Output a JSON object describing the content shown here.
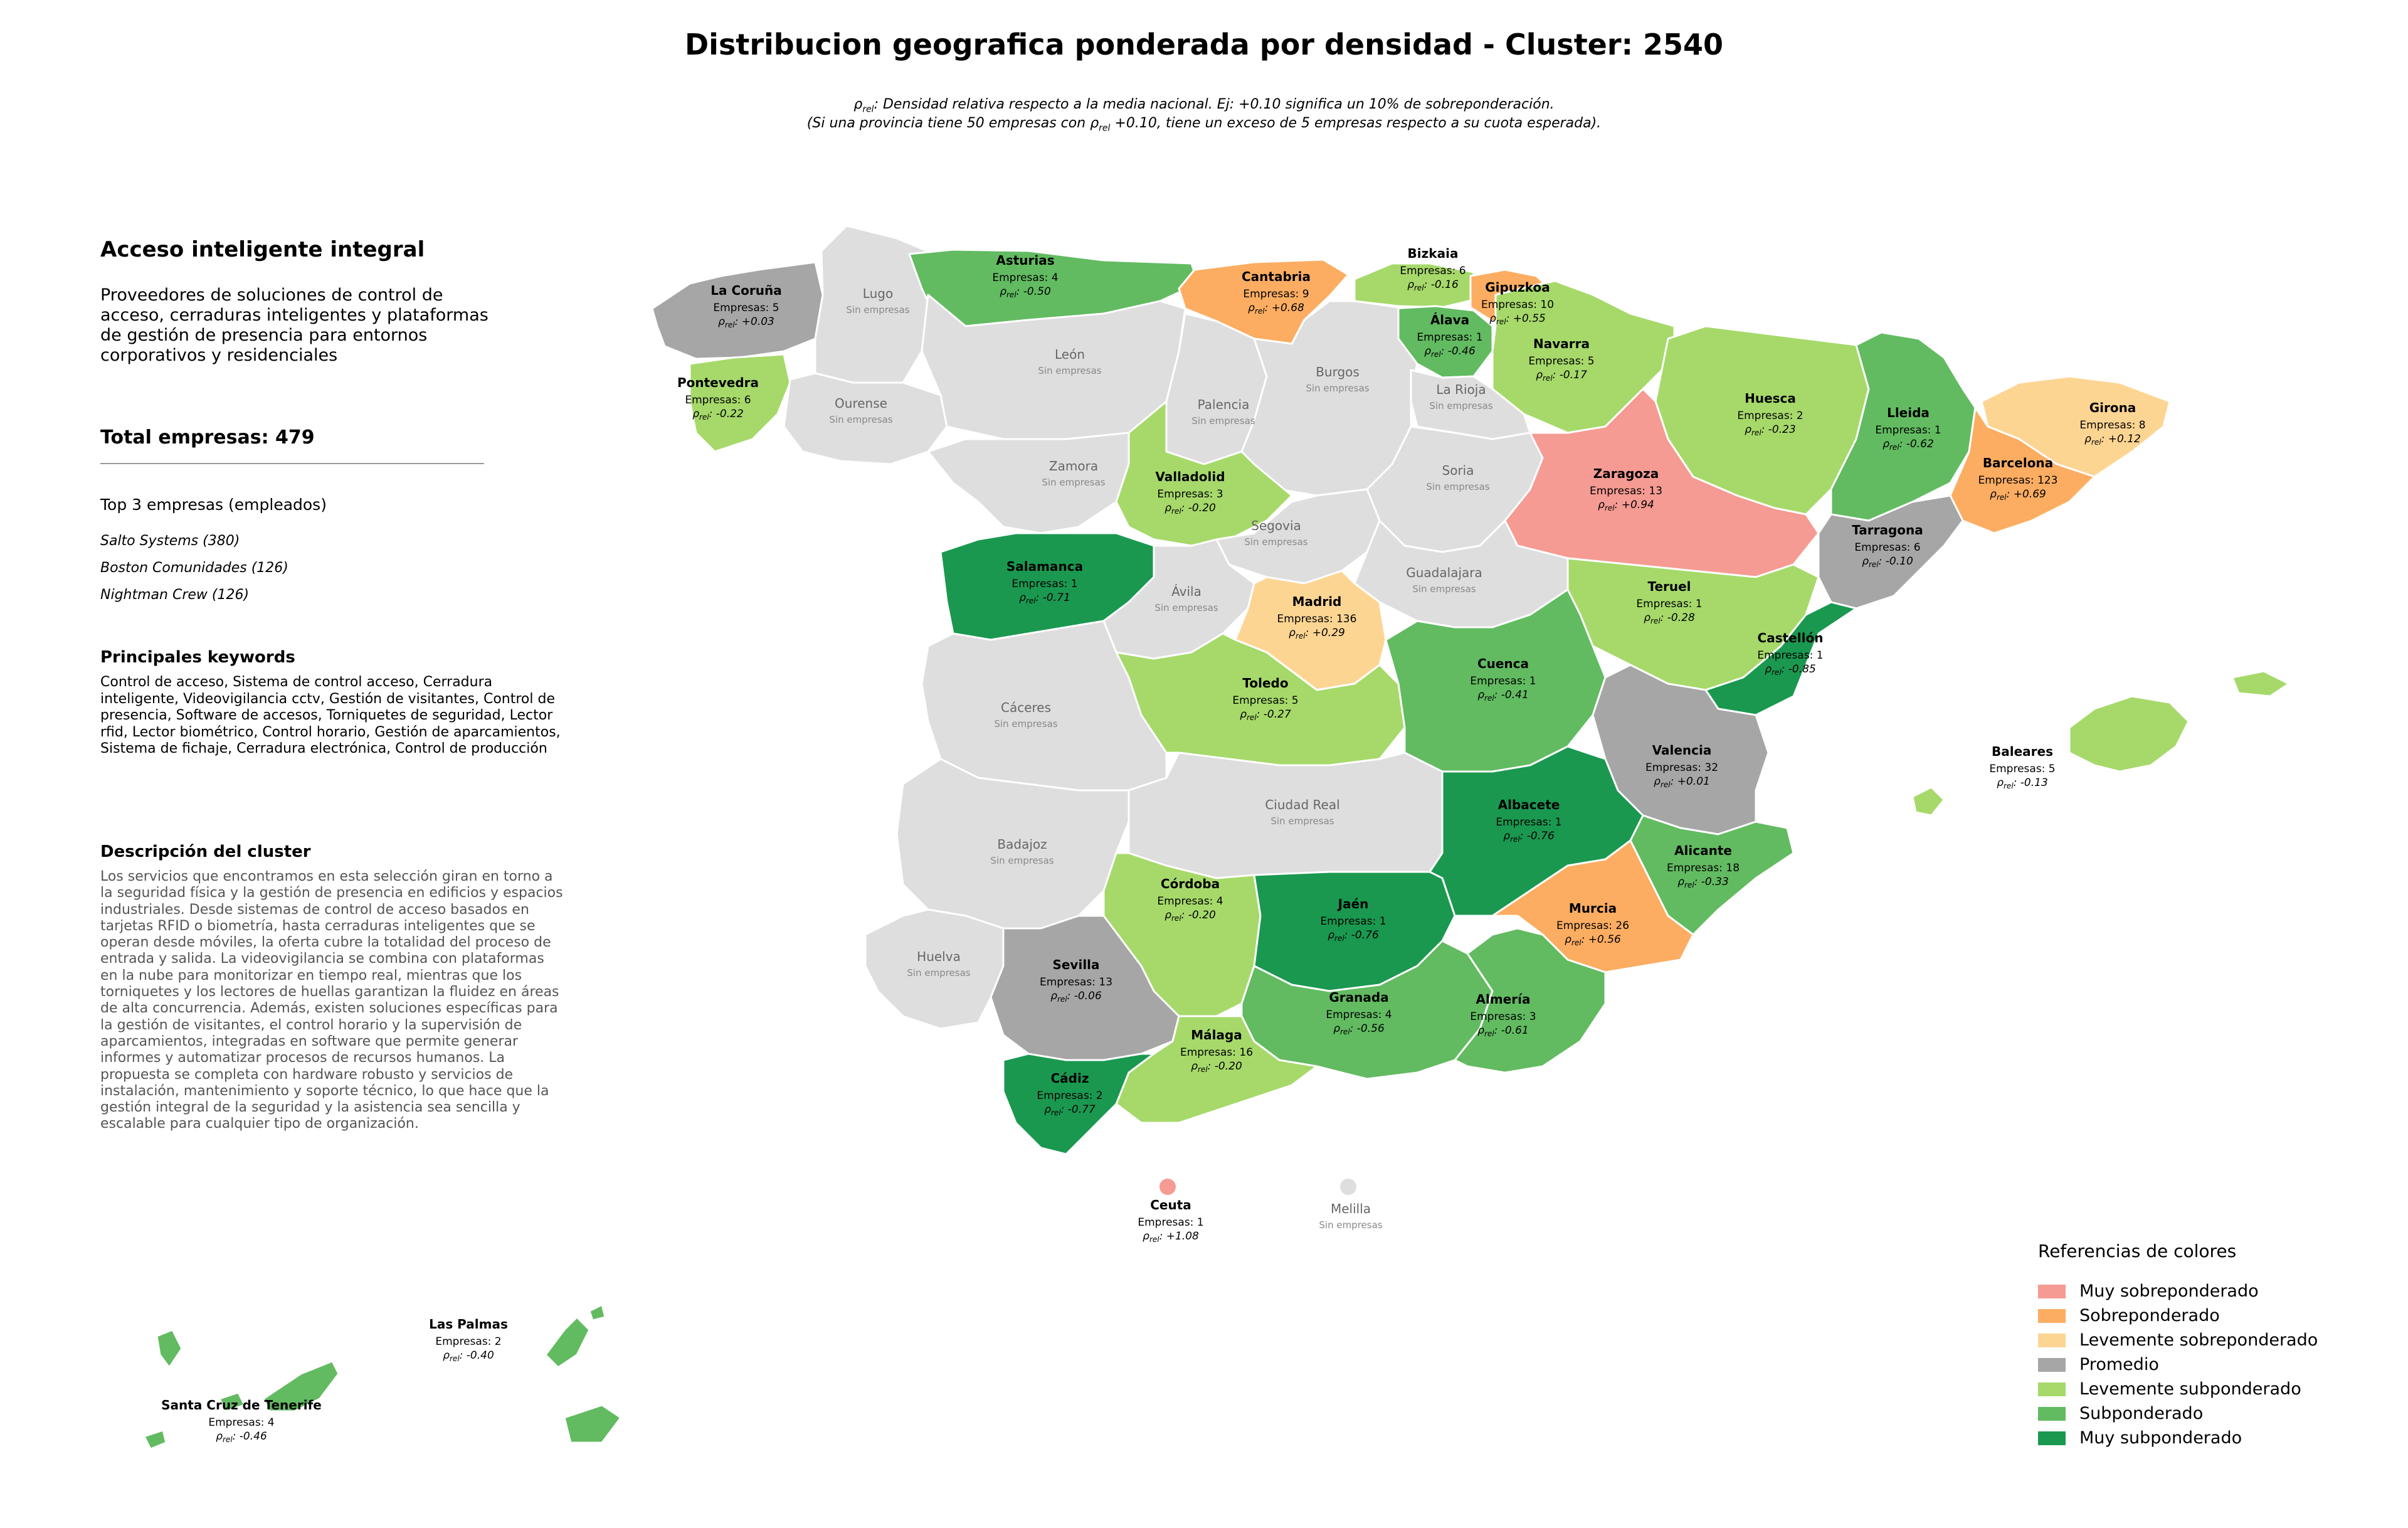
{
  "title": "Distribucion geografica ponderada por densidad - Cluster: 2540",
  "subtitle": {
    "line1_text": ": Densidad relativa respecto a la media nacional. Ej: +0.10 significa un 10% de sobreponderación.",
    "line2_pre": "(Si una provincia tiene 50 empresas con ",
    "line2_post": " +0.10, tiene un exceso de 5 empresas respecto a su cuota esperada).",
    "rho_symbol": "ρ",
    "rho_sub": "rel"
  },
  "panel": {
    "title": "Acceso inteligente integral",
    "description": "Proveedores de soluciones de control de acceso, cerraduras inteligentes y plataformas de gestión de presencia para entornos corporativos y residenciales",
    "total_label": "Total empresas: 479",
    "top3_title": "Top 3 empresas (empleados)",
    "top3": [
      "Salto Systems (380)",
      "Boston Comunidades (126)",
      "Nightman Crew (126)"
    ],
    "keywords_title": "Principales keywords",
    "keywords": "Control de acceso, Sistema de control acceso, Cerradura inteligente, Videovigilancia cctv, Gestión de visitantes, Control de presencia, Software de accesos, Torniquetes de seguridad, Lector rfid, Lector biométrico, Control horario, Gestión de aparcamientos, Sistema de fichaje, Cerradura electrónica, Control de producción",
    "cluster_desc_title": "Descripción del cluster",
    "cluster_desc": "Los servicios que encontramos en esta selección giran en torno a la seguridad física y la gestión de presencia en edificios y espacios industriales. Desde sistemas de control de acceso basados en tarjetas RFID o biometría, hasta cerraduras inteligentes que se operan desde móviles, la oferta cubre la totalidad del proceso de entrada y salida. La videovigilancia se combina con plataformas en la nube para monitorizar en tiempo real, mientras que los torniquetes y los lectores de huellas garantizan la fluidez en áreas de alta concurrencia. Además, existen soluciones específicas para la gestión de visitantes, el control horario y la supervisión de aparcamientos, integradas en software que permite generar informes y automatizar procesos de recursos humanos. La propuesta se completa con hardware robusto y servicios de instalación, mantenimiento y soporte técnico, lo que hace que la gestión integral de la seguridad y la asistencia sea sencilla y escalable para cualquier tipo de organización."
  },
  "labels": {
    "empresas_prefix": "Empresas: ",
    "no_data": "Sin empresas",
    "rho_suffix": ": "
  },
  "legend": {
    "title": "Referencias de colores",
    "items": [
      {
        "label": "Muy sobreponderado",
        "color": "#f59b93"
      },
      {
        "label": "Sobreponderado",
        "color": "#fcad62"
      },
      {
        "label": "Levemente sobreponderado",
        "color": "#fdd593"
      },
      {
        "label": "Promedio",
        "color": "#a6a6a6"
      },
      {
        "label": "Levemente subponderado",
        "color": "#a6d96a"
      },
      {
        "label": "Subponderado",
        "color": "#62bb61"
      },
      {
        "label": "Muy subponderado",
        "color": "#1a9850"
      }
    ],
    "no_data_color": "#dedede"
  },
  "provinces": [
    {
      "name": "La Coruña",
      "empresas": 5,
      "rho": "+0.03",
      "category": "Promedio"
    },
    {
      "name": "Lugo",
      "empresas": null,
      "rho": null,
      "category": "none"
    },
    {
      "name": "Asturias",
      "empresas": 4,
      "rho": "-0.50",
      "category": "Subponderado"
    },
    {
      "name": "Cantabria",
      "empresas": 9,
      "rho": "+0.68",
      "category": "Sobreponderado"
    },
    {
      "name": "Bizkaia",
      "empresas": 6,
      "rho": "-0.16",
      "category": "Levemente subponderado"
    },
    {
      "name": "Gipuzkoa",
      "empresas": 10,
      "rho": "+0.55",
      "category": "Sobreponderado"
    },
    {
      "name": "Álava",
      "empresas": 1,
      "rho": "-0.46",
      "category": "Subponderado"
    },
    {
      "name": "Navarra",
      "empresas": 5,
      "rho": "-0.17",
      "category": "Levemente subponderado"
    },
    {
      "name": "Pontevedra",
      "empresas": 6,
      "rho": "-0.22",
      "category": "Levemente subponderado"
    },
    {
      "name": "Ourense",
      "empresas": null,
      "rho": null,
      "category": "none"
    },
    {
      "name": "León",
      "empresas": null,
      "rho": null,
      "category": "none"
    },
    {
      "name": "Palencia",
      "empresas": null,
      "rho": null,
      "category": "none"
    },
    {
      "name": "Burgos",
      "empresas": null,
      "rho": null,
      "category": "none"
    },
    {
      "name": "La Rioja",
      "empresas": null,
      "rho": null,
      "category": "none"
    },
    {
      "name": "Huesca",
      "empresas": 2,
      "rho": "-0.23",
      "category": "Levemente subponderado"
    },
    {
      "name": "Lleida",
      "empresas": 1,
      "rho": "-0.62",
      "category": "Subponderado"
    },
    {
      "name": "Girona",
      "empresas": 8,
      "rho": "+0.12",
      "category": "Levemente sobreponderado"
    },
    {
      "name": "Barcelona",
      "empresas": 123,
      "rho": "+0.69",
      "category": "Sobreponderado"
    },
    {
      "name": "Zamora",
      "empresas": null,
      "rho": null,
      "category": "none"
    },
    {
      "name": "Valladolid",
      "empresas": 3,
      "rho": "-0.20",
      "category": "Levemente subponderado"
    },
    {
      "name": "Soria",
      "empresas": null,
      "rho": null,
      "category": "none"
    },
    {
      "name": "Zaragoza",
      "empresas": 13,
      "rho": "+0.94",
      "category": "Muy sobreponderado"
    },
    {
      "name": "Tarragona",
      "empresas": 6,
      "rho": "-0.10",
      "category": "Promedio"
    },
    {
      "name": "Salamanca",
      "empresas": 1,
      "rho": "-0.71",
      "category": "Muy subponderado"
    },
    {
      "name": "Segovia",
      "empresas": null,
      "rho": null,
      "category": "none"
    },
    {
      "name": "Ávila",
      "empresas": null,
      "rho": null,
      "category": "none"
    },
    {
      "name": "Guadalajara",
      "empresas": null,
      "rho": null,
      "category": "none"
    },
    {
      "name": "Madrid",
      "empresas": 136,
      "rho": "+0.29",
      "category": "Levemente sobreponderado"
    },
    {
      "name": "Teruel",
      "empresas": 1,
      "rho": "-0.28",
      "category": "Levemente subponderado"
    },
    {
      "name": "Castellón",
      "empresas": 1,
      "rho": "-0.85",
      "category": "Muy subponderado"
    },
    {
      "name": "Cáceres",
      "empresas": null,
      "rho": null,
      "category": "none"
    },
    {
      "name": "Toledo",
      "empresas": 5,
      "rho": "-0.27",
      "category": "Levemente subponderado"
    },
    {
      "name": "Cuenca",
      "empresas": 1,
      "rho": "-0.41",
      "category": "Subponderado"
    },
    {
      "name": "Valencia",
      "empresas": 32,
      "rho": "+0.01",
      "category": "Promedio"
    },
    {
      "name": "Baleares",
      "empresas": 5,
      "rho": "-0.13",
      "category": "Levemente subponderado"
    },
    {
      "name": "Badajoz",
      "empresas": null,
      "rho": null,
      "category": "none"
    },
    {
      "name": "Ciudad Real",
      "empresas": null,
      "rho": null,
      "category": "none"
    },
    {
      "name": "Albacete",
      "empresas": 1,
      "rho": "-0.76",
      "category": "Muy subponderado"
    },
    {
      "name": "Alicante",
      "empresas": 18,
      "rho": "-0.33",
      "category": "Subponderado"
    },
    {
      "name": "Córdoba",
      "empresas": 4,
      "rho": "-0.20",
      "category": "Levemente subponderado"
    },
    {
      "name": "Jaén",
      "empresas": 1,
      "rho": "-0.76",
      "category": "Muy subponderado"
    },
    {
      "name": "Murcia",
      "empresas": 26,
      "rho": "+0.56",
      "category": "Sobreponderado"
    },
    {
      "name": "Huelva",
      "empresas": null,
      "rho": null,
      "category": "none"
    },
    {
      "name": "Sevilla",
      "empresas": 13,
      "rho": "-0.06",
      "category": "Promedio"
    },
    {
      "name": "Granada",
      "empresas": 4,
      "rho": "-0.56",
      "category": "Subponderado"
    },
    {
      "name": "Almería",
      "empresas": 3,
      "rho": "-0.61",
      "category": "Subponderado"
    },
    {
      "name": "Málaga",
      "empresas": 16,
      "rho": "-0.20",
      "category": "Levemente subponderado"
    },
    {
      "name": "Cádiz",
      "empresas": 2,
      "rho": "-0.77",
      "category": "Muy subponderado"
    },
    {
      "name": "Ceuta",
      "empresas": 1,
      "rho": "+1.08",
      "category": "Muy sobreponderado"
    },
    {
      "name": "Melilla",
      "empresas": null,
      "rho": null,
      "category": "none"
    },
    {
      "name": "Las Palmas",
      "empresas": 2,
      "rho": "-0.40",
      "category": "Subponderado"
    },
    {
      "name": "Santa Cruz de Tenerife",
      "empresas": 4,
      "rho": "-0.46",
      "category": "Subponderado"
    }
  ]
}
